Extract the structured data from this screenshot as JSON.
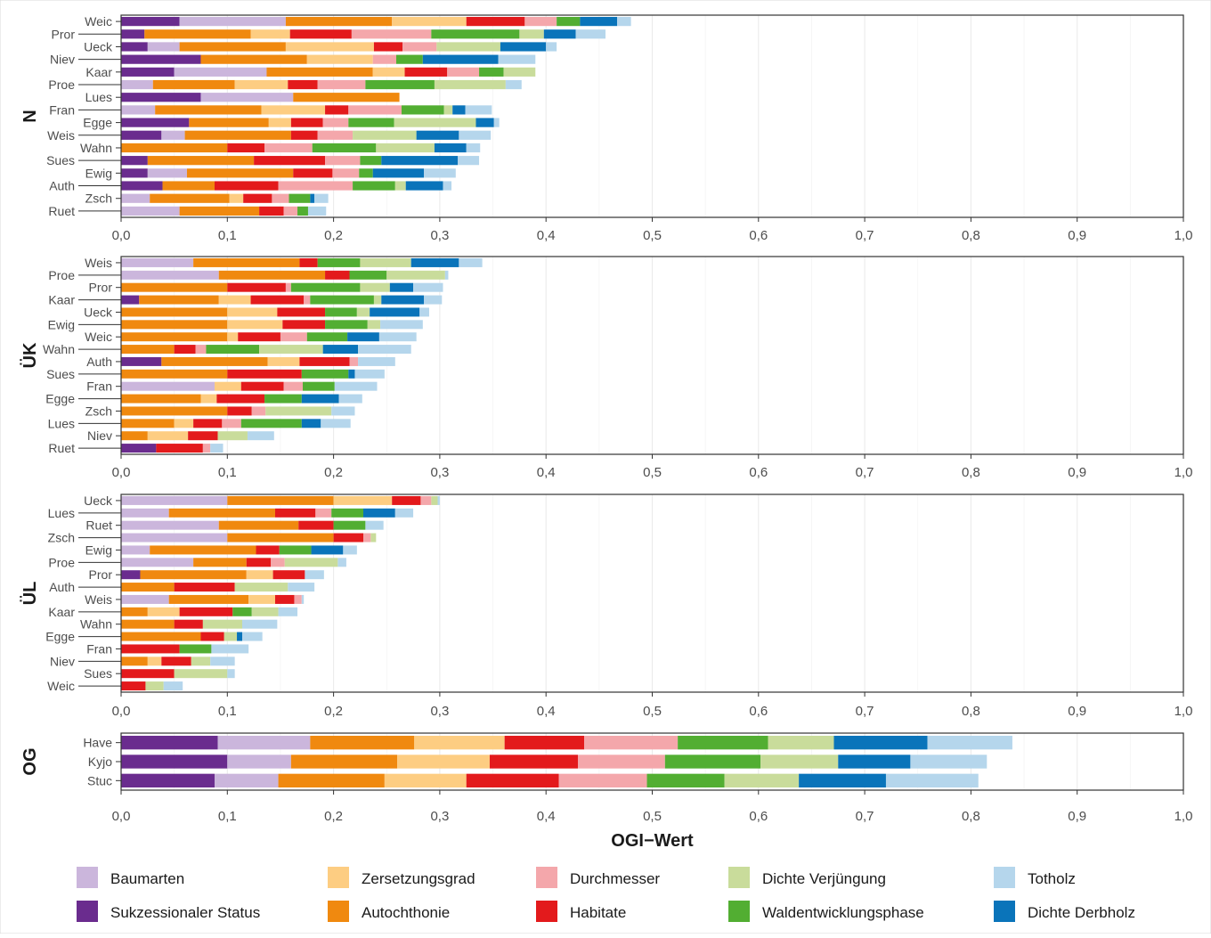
{
  "chart_data": {
    "type": "bar",
    "orientation": "horizontal",
    "stacked": true,
    "xlabel": "OGI−Wert",
    "xlim": [
      0,
      1
    ],
    "xticks": [
      "0,0",
      "0,1",
      "0,2",
      "0,3",
      "0,4",
      "0,5",
      "0,6",
      "0,7",
      "0,8",
      "0,9",
      "1,0"
    ],
    "grid": true,
    "legend_position": "bottom",
    "segment_order": [
      "Sukzessionaler Status",
      "Baumarten",
      "Autochthonie",
      "Zersetzungsgrad",
      "Habitate",
      "Durchmesser",
      "Waldentwicklungsphase",
      "Dichte Verjüngung",
      "Dichte Derbholz",
      "Totholz"
    ],
    "legend": [
      {
        "label": "Baumarten",
        "color": "#cbb6dc"
      },
      {
        "label": "Zersetzungsgrad",
        "color": "#fdcd82"
      },
      {
        "label": "Durchmesser",
        "color": "#f4a7ab"
      },
      {
        "label": "Dichte Verjüngung",
        "color": "#c9dc9b"
      },
      {
        "label": "Totholz",
        "color": "#b5d6ec"
      },
      {
        "label": "Sukzessionaler Status",
        "color": "#6a2c8e"
      },
      {
        "label": "Autochthonie",
        "color": "#f0890f"
      },
      {
        "label": "Habitate",
        "color": "#e31a1c"
      },
      {
        "label": "Waldentwicklungsphase",
        "color": "#52ae32"
      },
      {
        "label": "Dichte Derbholz",
        "color": "#0a74ba"
      }
    ],
    "panels": [
      {
        "label": "N",
        "rows": [
          {
            "name": "Weic",
            "values": [
              0.055,
              0.1,
              0.1,
              0.07,
              0.055,
              0.03,
              0.022,
              0.0,
              0.035,
              0.013
            ]
          },
          {
            "name": "Pror",
            "values": [
              0.022,
              0.0,
              0.1,
              0.037,
              0.058,
              0.075,
              0.083,
              0.023,
              0.03,
              0.028
            ]
          },
          {
            "name": "Ueck",
            "values": [
              0.025,
              0.03,
              0.1,
              0.083,
              0.027,
              0.032,
              0.0,
              0.06,
              0.043,
              0.01
            ]
          },
          {
            "name": "Niev",
            "values": [
              0.075,
              0.0,
              0.1,
              0.062,
              0.0,
              0.022,
              0.025,
              0.0,
              0.071,
              0.035
            ]
          },
          {
            "name": "Kaar",
            "values": [
              0.05,
              0.087,
              0.1,
              0.03,
              0.04,
              0.03,
              0.023,
              0.03,
              0.0,
              0.0
            ]
          },
          {
            "name": "Proe",
            "values": [
              0.0,
              0.03,
              0.077,
              0.05,
              0.028,
              0.045,
              0.065,
              0.067,
              0.0,
              0.015
            ]
          },
          {
            "name": "Lues",
            "values": [
              0.075,
              0.087,
              0.1,
              0.0,
              0.0,
              0.0,
              0.0,
              0.0,
              0.0,
              0.0
            ]
          },
          {
            "name": "Fran",
            "values": [
              0.0,
              0.032,
              0.1,
              0.06,
              0.022,
              0.05,
              0.04,
              0.008,
              0.012,
              0.025
            ]
          },
          {
            "name": "Egge",
            "values": [
              0.064,
              0.0,
              0.075,
              0.021,
              0.03,
              0.024,
              0.043,
              0.077,
              0.017,
              0.005
            ]
          },
          {
            "name": "Weis",
            "values": [
              0.038,
              0.022,
              0.1,
              0.0,
              0.025,
              0.033,
              0.0,
              0.06,
              0.04,
              0.03
            ]
          },
          {
            "name": "Wahn",
            "values": [
              0.0,
              0.0,
              0.1,
              0.0,
              0.035,
              0.045,
              0.06,
              0.055,
              0.03,
              0.013
            ]
          },
          {
            "name": "Sues",
            "values": [
              0.025,
              0.0,
              0.1,
              0.0,
              0.067,
              0.033,
              0.02,
              0.0,
              0.072,
              0.02
            ]
          },
          {
            "name": "Ewig",
            "values": [
              0.025,
              0.037,
              0.1,
              0.0,
              0.037,
              0.025,
              0.013,
              0.0,
              0.048,
              0.03
            ]
          },
          {
            "name": "Auth",
            "values": [
              0.039,
              0.0,
              0.049,
              0.0,
              0.06,
              0.07,
              0.04,
              0.01,
              0.035,
              0.008
            ]
          },
          {
            "name": "Zsch",
            "values": [
              0.0,
              0.027,
              0.075,
              0.013,
              0.027,
              0.016,
              0.02,
              0.0,
              0.004,
              0.013
            ]
          },
          {
            "name": "Ruet",
            "values": [
              0.0,
              0.055,
              0.075,
              0.0,
              0.023,
              0.013,
              0.01,
              0.0,
              0.0,
              0.017
            ]
          }
        ]
      },
      {
        "label": "ÜK",
        "rows": [
          {
            "name": "Weis",
            "values": [
              0.0,
              0.068,
              0.1,
              0.0,
              0.017,
              0.0,
              0.04,
              0.048,
              0.045,
              0.022
            ]
          },
          {
            "name": "Proe",
            "values": [
              0.0,
              0.092,
              0.1,
              0.0,
              0.023,
              0.0,
              0.035,
              0.055,
              0.0,
              0.003
            ]
          },
          {
            "name": "Pror",
            "values": [
              0.0,
              0.0,
              0.1,
              0.0,
              0.055,
              0.005,
              0.065,
              0.028,
              0.022,
              0.028
            ]
          },
          {
            "name": "Kaar",
            "values": [
              0.017,
              0.0,
              0.075,
              0.03,
              0.05,
              0.006,
              0.06,
              0.007,
              0.04,
              0.017
            ]
          },
          {
            "name": "Ueck",
            "values": [
              0.0,
              0.0,
              0.1,
              0.047,
              0.045,
              0.0,
              0.03,
              0.012,
              0.047,
              0.009
            ]
          },
          {
            "name": "Ewig",
            "values": [
              0.0,
              0.0,
              0.1,
              0.052,
              0.04,
              0.0,
              0.04,
              0.012,
              0.0,
              0.04
            ]
          },
          {
            "name": "Weic",
            "values": [
              0.0,
              0.0,
              0.1,
              0.01,
              0.04,
              0.025,
              0.038,
              0.0,
              0.03,
              0.035
            ]
          },
          {
            "name": "Wahn",
            "values": [
              0.0,
              0.0,
              0.05,
              0.0,
              0.02,
              0.01,
              0.05,
              0.06,
              0.033,
              0.05
            ]
          },
          {
            "name": "Auth",
            "values": [
              0.038,
              0.0,
              0.1,
              0.03,
              0.047,
              0.008,
              0.0,
              0.0,
              0.0,
              0.035
            ]
          },
          {
            "name": "Sues",
            "values": [
              0.0,
              0.0,
              0.1,
              0.0,
              0.07,
              0.0,
              0.044,
              0.0,
              0.006,
              0.028
            ]
          },
          {
            "name": "Fran",
            "values": [
              0.0,
              0.088,
              0.0,
              0.025,
              0.04,
              0.018,
              0.03,
              0.0,
              0.0,
              0.04
            ]
          },
          {
            "name": "Egge",
            "values": [
              0.0,
              0.0,
              0.075,
              0.015,
              0.045,
              0.0,
              0.035,
              0.0,
              0.035,
              0.022
            ]
          },
          {
            "name": "Zsch",
            "values": [
              0.0,
              0.0,
              0.1,
              0.0,
              0.023,
              0.013,
              0.0,
              0.062,
              0.0,
              0.022
            ]
          },
          {
            "name": "Lues",
            "values": [
              0.0,
              0.0,
              0.05,
              0.018,
              0.027,
              0.018,
              0.057,
              0.0,
              0.018,
              0.028
            ]
          },
          {
            "name": "Niev",
            "values": [
              0.0,
              0.0,
              0.025,
              0.038,
              0.028,
              0.0,
              0.0,
              0.028,
              0.0,
              0.025
            ]
          },
          {
            "name": "Ruet",
            "values": [
              0.033,
              0.0,
              0.0,
              0.0,
              0.044,
              0.007,
              0.0,
              0.0,
              0.0,
              0.012
            ]
          }
        ]
      },
      {
        "label": "ÜL",
        "rows": [
          {
            "name": "Ueck",
            "values": [
              0.0,
              0.1,
              0.1,
              0.055,
              0.027,
              0.01,
              0.0,
              0.006,
              0.0,
              0.002
            ]
          },
          {
            "name": "Lues",
            "values": [
              0.0,
              0.045,
              0.1,
              0.0,
              0.038,
              0.015,
              0.03,
              0.0,
              0.03,
              0.017
            ]
          },
          {
            "name": "Ruet",
            "values": [
              0.0,
              0.092,
              0.075,
              0.0,
              0.033,
              0.0,
              0.03,
              0.0,
              0.0,
              0.017
            ]
          },
          {
            "name": "Zsch",
            "values": [
              0.0,
              0.1,
              0.1,
              0.0,
              0.028,
              0.007,
              0.0,
              0.005,
              0.0,
              0.0
            ]
          },
          {
            "name": "Ewig",
            "values": [
              0.0,
              0.027,
              0.1,
              0.0,
              0.022,
              0.0,
              0.03,
              0.0,
              0.03,
              0.013
            ]
          },
          {
            "name": "Proe",
            "values": [
              0.0,
              0.068,
              0.05,
              0.0,
              0.023,
              0.013,
              0.0,
              0.05,
              0.0,
              0.008
            ]
          },
          {
            "name": "Pror",
            "values": [
              0.018,
              0.0,
              0.1,
              0.025,
              0.03,
              0.0,
              0.0,
              0.0,
              0.0,
              0.018
            ]
          },
          {
            "name": "Auth",
            "values": [
              0.0,
              0.0,
              0.05,
              0.0,
              0.057,
              0.0,
              0.0,
              0.05,
              0.0,
              0.025
            ]
          },
          {
            "name": "Weis",
            "values": [
              0.0,
              0.045,
              0.075,
              0.025,
              0.018,
              0.007,
              0.0,
              0.0,
              0.0,
              0.002
            ]
          },
          {
            "name": "Kaar",
            "values": [
              0.0,
              0.0,
              0.025,
              0.03,
              0.05,
              0.0,
              0.018,
              0.025,
              0.0,
              0.018
            ]
          },
          {
            "name": "Wahn",
            "values": [
              0.0,
              0.0,
              0.05,
              0.0,
              0.027,
              0.0,
              0.0,
              0.037,
              0.0,
              0.033
            ]
          },
          {
            "name": "Egge",
            "values": [
              0.0,
              0.0,
              0.075,
              0.0,
              0.022,
              0.0,
              0.0,
              0.012,
              0.005,
              0.019
            ]
          },
          {
            "name": "Fran",
            "values": [
              0.0,
              0.0,
              0.0,
              0.0,
              0.055,
              0.0,
              0.03,
              0.0,
              0.0,
              0.035
            ]
          },
          {
            "name": "Niev",
            "values": [
              0.0,
              0.0,
              0.025,
              0.013,
              0.028,
              0.0,
              0.0,
              0.018,
              0.0,
              0.023
            ]
          },
          {
            "name": "Sues",
            "values": [
              0.0,
              0.0,
              0.0,
              0.0,
              0.05,
              0.0,
              0.0,
              0.05,
              0.0,
              0.007
            ]
          },
          {
            "name": "Weic",
            "values": [
              0.0,
              0.0,
              0.0,
              0.0,
              0.023,
              0.0,
              0.0,
              0.017,
              0.0,
              0.018
            ]
          }
        ]
      },
      {
        "label": "OG",
        "rows": [
          {
            "name": "Have",
            "values": [
              0.091,
              0.087,
              0.098,
              0.085,
              0.075,
              0.088,
              0.085,
              0.062,
              0.088,
              0.08
            ]
          },
          {
            "name": "Kyjo",
            "values": [
              0.1,
              0.06,
              0.1,
              0.087,
              0.083,
              0.082,
              0.09,
              0.073,
              0.068,
              0.072
            ]
          },
          {
            "name": "Stuc",
            "values": [
              0.088,
              0.06,
              0.1,
              0.077,
              0.087,
              0.083,
              0.073,
              0.07,
              0.082,
              0.087
            ]
          }
        ]
      }
    ]
  }
}
